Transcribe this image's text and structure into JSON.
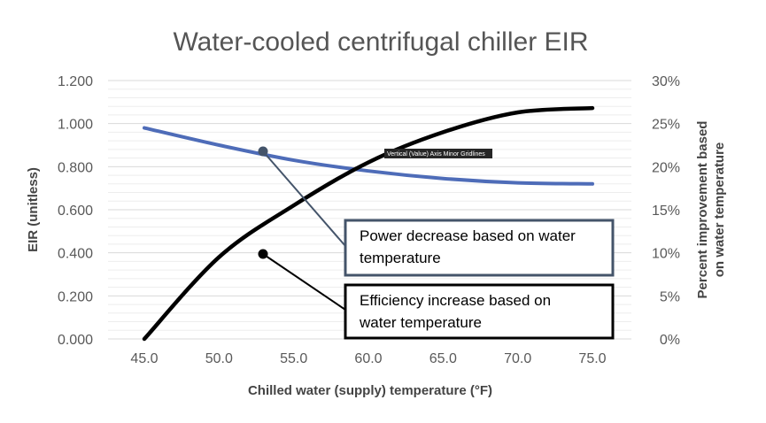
{
  "chart_data": {
    "type": "line",
    "title": "Water-cooled centrifugal chiller EIR",
    "xlabel": "Chilled water (supply) temperature (°F)",
    "ylabel": "EIR (unitless)",
    "y2label_lines": [
      "Percent improvement based",
      "on water temperature"
    ],
    "x_ticks": [
      "45.0",
      "50.0",
      "55.0",
      "60.0",
      "65.0",
      "70.0",
      "75.0"
    ],
    "y_ticks": [
      "0.000",
      "0.200",
      "0.400",
      "0.600",
      "0.800",
      "1.000",
      "1.200"
    ],
    "y2_ticks": [
      "0%",
      "5%",
      "10%",
      "15%",
      "20%",
      "25%",
      "30%"
    ],
    "xlim": [
      45,
      75
    ],
    "ylim": [
      0,
      1.2
    ],
    "y2lim": [
      0,
      0.3
    ],
    "grid": "horizontal major and minor",
    "series": [
      {
        "axis": "left",
        "color": "#4e6cb8",
        "x": [
          45,
          50,
          55,
          60,
          65,
          70,
          75
        ],
        "values": [
          0.98,
          0.9,
          0.83,
          0.78,
          0.745,
          0.725,
          0.72
        ]
      },
      {
        "axis": "right",
        "color": "#000000",
        "x": [
          45,
          50,
          55,
          60,
          65,
          70,
          75
        ],
        "values": [
          0.0,
          0.095,
          0.155,
          0.205,
          0.24,
          0.263,
          0.268
        ]
      }
    ],
    "annotations": [
      {
        "lines": [
          "Power decrease based on water",
          "temperature"
        ],
        "border": "#44546a"
      },
      {
        "lines": [
          "Efficiency increase based on",
          "water temperature"
        ],
        "border": "#000000"
      }
    ],
    "tooltip": "Vertical (Value) Axis Minor Gridlines"
  }
}
